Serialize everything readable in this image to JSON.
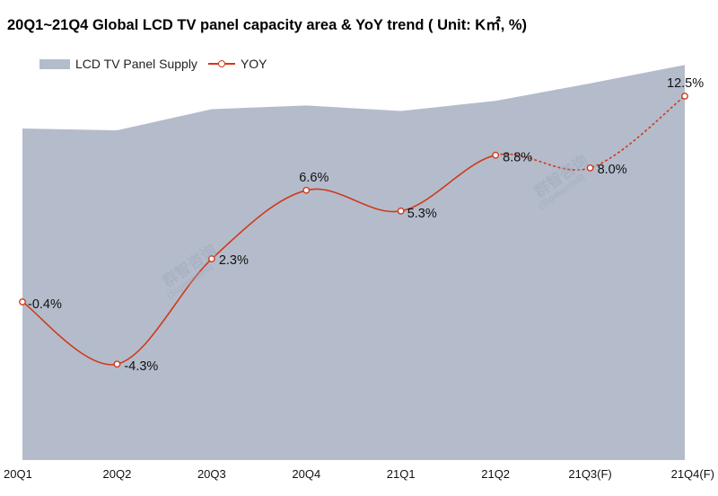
{
  "chart_data": {
    "type": "area",
    "title": "20Q1~21Q4 Global LCD TV panel capacity area & YoY trend ( Unit: K㎡,  %)",
    "categories": [
      "20Q1",
      "20Q2",
      "20Q3",
      "20Q4",
      "21Q1",
      "21Q2",
      "21Q3(F)",
      "21Q4(F)"
    ],
    "series": [
      {
        "name": "LCD TV Panel Supply",
        "kind": "area",
        "values": [
          36.0,
          35.8,
          38.1,
          38.5,
          37.9,
          39.0,
          40.9,
          42.9
        ]
      },
      {
        "name": "YOY",
        "kind": "line",
        "values": [
          -0.4,
          -4.3,
          2.3,
          6.6,
          5.3,
          8.8,
          8.0,
          12.5
        ],
        "labels": [
          "-0.4%",
          "-4.3%",
          "2.3%",
          "6.6%",
          "5.3%",
          "8.8%",
          "8.0%",
          "12.5%"
        ],
        "forecast_from_index": 5
      }
    ],
    "colors": {
      "area": "#b4bccb",
      "line": "#cf3a1d"
    },
    "legend_position": "top-left",
    "grid": false
  },
  "watermarks": [
    "群智咨询",
    "(Sigmaintell)"
  ]
}
